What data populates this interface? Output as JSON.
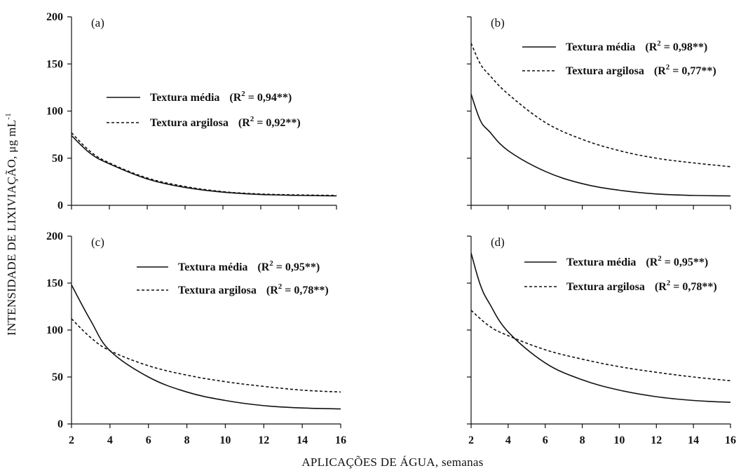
{
  "figure": {
    "ylabel": "INTENSIDADE DE LIXIVIAÇÃO, μg mL",
    "ylabel_sup": "-1",
    "xlabel": "APLICAÇÕES DE ÁGUA, semanas"
  },
  "chart_data": [
    {
      "type": "line",
      "panel": "(a)",
      "x_ticks": [
        2,
        4,
        6,
        8,
        10,
        12,
        14,
        16
      ],
      "y_ticks": [
        0,
        50,
        100,
        150,
        200
      ],
      "xlim": [
        2,
        16
      ],
      "ylim": [
        0,
        200
      ],
      "show_x_tick_labels": false,
      "show_y_tick_labels": true,
      "legend_position": "upper-middle",
      "series": [
        {
          "name": "Textura média",
          "style": "solid",
          "r2_value": "0,94**",
          "x": [
            2,
            3,
            4,
            6,
            8,
            10,
            12,
            14,
            16
          ],
          "y": [
            74,
            55,
            44,
            28,
            19,
            14,
            11.5,
            10.5,
            10
          ]
        },
        {
          "name": "Textura argilosa",
          "style": "dashed",
          "r2_value": "0,92**",
          "x": [
            2,
            3,
            4,
            6,
            8,
            10,
            12,
            14,
            16
          ],
          "y": [
            77,
            57,
            45,
            29,
            20,
            14.5,
            12,
            11,
            10.5
          ]
        }
      ]
    },
    {
      "type": "line",
      "panel": "(b)",
      "x_ticks": [
        2,
        4,
        6,
        8,
        10,
        12,
        14,
        16
      ],
      "y_ticks": [
        0,
        50,
        100,
        150,
        200
      ],
      "xlim": [
        2,
        16
      ],
      "ylim": [
        0,
        200
      ],
      "show_x_tick_labels": false,
      "show_y_tick_labels": false,
      "legend_position": "top-right",
      "series": [
        {
          "name": "Textura média",
          "style": "solid",
          "r2_value": "0,98**",
          "x": [
            2,
            2.5,
            3,
            4,
            6,
            8,
            10,
            12,
            14,
            16
          ],
          "y": [
            118,
            90,
            78,
            58,
            36,
            23,
            16,
            12,
            10.5,
            10
          ]
        },
        {
          "name": "Textura argilosa",
          "style": "dashed",
          "r2_value": "0,77**",
          "x": [
            2,
            2.5,
            3,
            4,
            6,
            8,
            10,
            12,
            14,
            16
          ],
          "y": [
            172,
            150,
            138,
            118,
            88,
            70,
            58,
            50,
            45,
            41
          ]
        }
      ]
    },
    {
      "type": "line",
      "panel": "(c)",
      "x_ticks": [
        2,
        4,
        6,
        8,
        10,
        12,
        14,
        16
      ],
      "y_ticks": [
        0,
        50,
        100,
        150,
        200
      ],
      "xlim": [
        2,
        16
      ],
      "ylim": [
        0,
        200
      ],
      "show_x_tick_labels": true,
      "show_y_tick_labels": true,
      "legend_position": "upper-right",
      "series": [
        {
          "name": "Textura média",
          "style": "solid",
          "r2_value": "0,95**",
          "x": [
            2,
            3,
            4,
            6,
            8,
            10,
            12,
            14,
            16
          ],
          "y": [
            148,
            110,
            78,
            50,
            34,
            25,
            19.5,
            17,
            16
          ]
        },
        {
          "name": "Textura argilosa",
          "style": "dashed",
          "r2_value": "0,78**",
          "x": [
            2,
            3,
            4,
            6,
            8,
            10,
            12,
            14,
            16
          ],
          "y": [
            112,
            92,
            78,
            62,
            52,
            45,
            40,
            36,
            34
          ]
        }
      ]
    },
    {
      "type": "line",
      "panel": "(d)",
      "x_ticks": [
        2,
        4,
        6,
        8,
        10,
        12,
        14,
        16
      ],
      "y_ticks": [
        0,
        50,
        100,
        150,
        200
      ],
      "xlim": [
        2,
        16
      ],
      "ylim": [
        0,
        200
      ],
      "show_x_tick_labels": true,
      "show_y_tick_labels": false,
      "legend_position": "upper-right",
      "series": [
        {
          "name": "Textura média",
          "style": "solid",
          "r2_value": "0,95**",
          "x": [
            2,
            2.5,
            3,
            4,
            6,
            8,
            10,
            12,
            14,
            16
          ],
          "y": [
            182,
            148,
            128,
            98,
            65,
            47,
            36,
            29,
            25,
            23
          ]
        },
        {
          "name": "Textura argilosa",
          "style": "dashed",
          "r2_value": "0,78**",
          "x": [
            2,
            3,
            4,
            6,
            8,
            10,
            12,
            14,
            16
          ],
          "y": [
            121,
            104,
            94,
            79,
            69,
            61,
            55,
            50,
            46
          ]
        }
      ]
    }
  ]
}
